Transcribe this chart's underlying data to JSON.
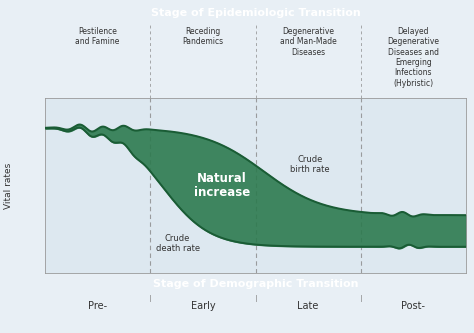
{
  "title_top": "Stage of Epidemiologic Transition",
  "title_bottom": "Stage of Demographic Transition",
  "ylabel": "Vital rates",
  "stage_labels_top": [
    "Pestilence\nand Famine",
    "Receding\nPandemics",
    "Degenerative\nand Man-Made\nDiseases",
    "Delayed\nDegenerative\nDiseases and\nEmerging\nInfections\n(Hybristic)"
  ],
  "stage_labels_bottom": [
    "Pre-",
    "Early",
    "Late",
    "Post-"
  ],
  "vline_positions": [
    0.25,
    0.5,
    0.75
  ],
  "annotation_birth": "Crude\nbirth rate",
  "annotation_death": "Crude\ndeath rate",
  "annotation_natural": "Natural\nincrease",
  "bg_color": "#e8eff5",
  "plot_bg": "#dde8f0",
  "header_color": "#6aad8a",
  "fill_color": "#2d7a4f",
  "line_color": "#1a5c35",
  "header_text_color": "#ffffff",
  "dashed_color": "#888888",
  "text_color": "#333333"
}
